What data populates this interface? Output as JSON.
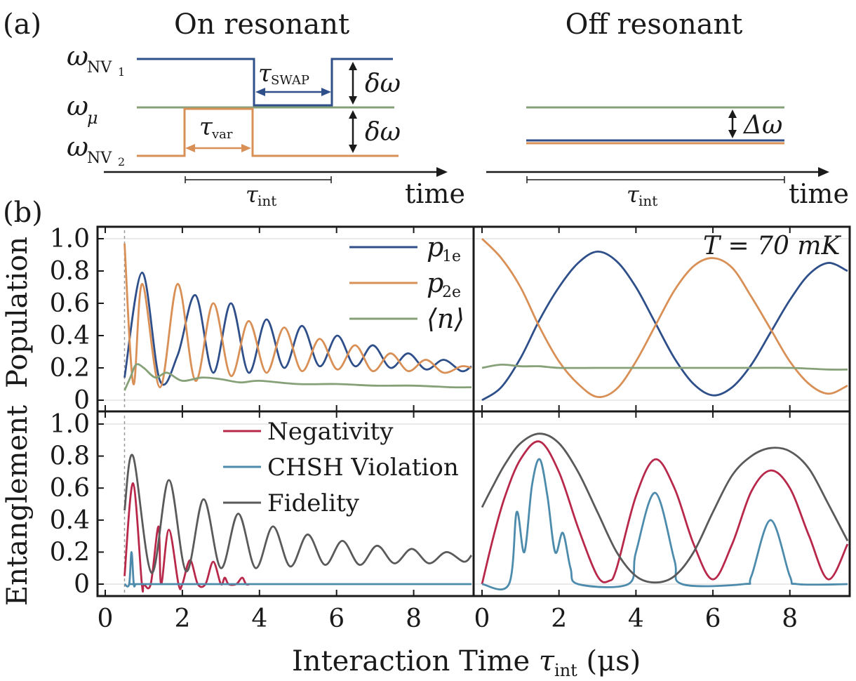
{
  "panel_a": {
    "label": "(a)",
    "on_title": "On resonant",
    "off_title": "Off resonant",
    "omega": "ω",
    "nv1_sub": "NV",
    "nv1_idx": "1",
    "mu_sub": "μ",
    "nv2_sub": "NV",
    "nv2_idx": "2",
    "tau": "τ",
    "swap_sub": "SWAP",
    "var_sub": "var",
    "int_sub": "int",
    "delta_omega": "δω",
    "Delta_omega": "Δω",
    "time_label": "time",
    "colors": {
      "nv1": "#2f4f8a",
      "mu": "#86a178",
      "nv2": "#d99057"
    }
  },
  "panel_b": {
    "label": "(b)",
    "temperature": "T = 70 mK",
    "xlabel_pre": "Interaction Time ",
    "xlabel_tau": "τ",
    "xlabel_sub": "int",
    "xlabel_unit": " (μs)",
    "ylabel_top": "Population",
    "ylabel_bottom": "Entanglement",
    "legend_top": [
      {
        "sym": "p",
        "sub": "1e",
        "color": "#2f4f8a"
      },
      {
        "sym": "p",
        "sub": "2e",
        "color": "#d99057"
      },
      {
        "sym": "⟨n⟩",
        "sub": "",
        "color": "#86a178"
      }
    ],
    "legend_bottom": [
      {
        "label": "Negativity",
        "color": "#b8284a"
      },
      {
        "label": "CHSH Violation",
        "color": "#4d8bad"
      },
      {
        "label": "Fidelity",
        "color": "#5a5a5a"
      }
    ]
  },
  "chart_data": [
    {
      "type": "line",
      "panel": "population-on-resonant",
      "ylabel": "Population",
      "xlim": [
        0,
        9.5
      ],
      "ylim": [
        0,
        1.0
      ],
      "x_ticks": [
        "0",
        "2",
        "4",
        "6",
        "8"
      ],
      "y_ticks": [
        "0",
        "0.2",
        "0.4",
        "0.6",
        "0.8",
        "1.0"
      ],
      "series": [
        {
          "name": "p1e",
          "color": "#2f4f8a",
          "x": [
            0.5,
            0.96,
            1.42,
            1.88,
            2.34,
            2.8,
            3.26,
            3.72,
            4.18,
            4.64,
            5.1,
            5.56,
            6.02,
            6.48,
            6.94,
            7.4,
            7.86,
            8.32,
            8.78,
            9.24,
            9.5
          ],
          "y": [
            0.14,
            0.79,
            0.12,
            0.28,
            0.65,
            0.17,
            0.6,
            0.17,
            0.5,
            0.2,
            0.46,
            0.21,
            0.4,
            0.21,
            0.34,
            0.2,
            0.29,
            0.19,
            0.25,
            0.18,
            0.21
          ]
        },
        {
          "name": "p2e",
          "color": "#d99057",
          "x": [
            0.5,
            0.73,
            0.96,
            1.42,
            1.88,
            2.34,
            2.8,
            3.26,
            3.72,
            4.18,
            4.64,
            5.1,
            5.56,
            6.02,
            6.48,
            6.94,
            7.4,
            7.86,
            8.32,
            8.78,
            9.24,
            9.5
          ],
          "y": [
            0.97,
            0.1,
            0.72,
            0.08,
            0.72,
            0.12,
            0.6,
            0.15,
            0.49,
            0.17,
            0.45,
            0.18,
            0.38,
            0.19,
            0.34,
            0.18,
            0.29,
            0.18,
            0.25,
            0.17,
            0.21,
            0.2
          ]
        },
        {
          "name": "⟨n⟩",
          "color": "#86a178",
          "x": [
            0.5,
            0.65,
            0.8,
            1.0,
            1.3,
            1.6,
            2.0,
            2.5,
            3.0,
            3.5,
            4.0,
            5.0,
            6.0,
            7.0,
            8.0,
            9.0,
            9.5
          ],
          "y": [
            0.06,
            0.14,
            0.22,
            0.2,
            0.14,
            0.17,
            0.12,
            0.14,
            0.13,
            0.11,
            0.12,
            0.1,
            0.1,
            0.09,
            0.09,
            0.08,
            0.08
          ]
        }
      ]
    },
    {
      "type": "line",
      "panel": "population-off-resonant",
      "xlim": [
        0,
        9.5
      ],
      "ylim": [
        0,
        1.0
      ],
      "x_ticks": [
        "0",
        "2",
        "4",
        "6",
        "8"
      ],
      "series": [
        {
          "name": "p1e",
          "color": "#2f4f8a",
          "x": [
            0,
            0.5,
            1.0,
            1.5,
            2.0,
            2.5,
            3.0,
            3.5,
            4.0,
            4.5,
            5.0,
            5.5,
            6.0,
            6.5,
            7.0,
            7.5,
            8.0,
            8.5,
            9.0,
            9.5
          ],
          "y": [
            0.0,
            0.08,
            0.26,
            0.5,
            0.7,
            0.85,
            0.92,
            0.86,
            0.7,
            0.48,
            0.26,
            0.1,
            0.03,
            0.08,
            0.22,
            0.42,
            0.62,
            0.78,
            0.85,
            0.8
          ]
        },
        {
          "name": "p2e",
          "color": "#d99057",
          "x": [
            0,
            0.5,
            1.0,
            1.5,
            2.0,
            2.5,
            3.0,
            3.5,
            4.0,
            4.5,
            5.0,
            5.5,
            6.0,
            6.5,
            7.0,
            7.5,
            8.0,
            8.5,
            9.0,
            9.5
          ],
          "y": [
            1.0,
            0.88,
            0.7,
            0.45,
            0.24,
            0.1,
            0.02,
            0.07,
            0.24,
            0.46,
            0.68,
            0.83,
            0.88,
            0.82,
            0.64,
            0.44,
            0.24,
            0.1,
            0.04,
            0.09
          ]
        },
        {
          "name": "⟨n⟩",
          "color": "#86a178",
          "x": [
            0,
            0.5,
            1.0,
            1.5,
            2.0,
            3.0,
            4.0,
            5.0,
            6.0,
            7.0,
            8.0,
            9.0,
            9.5
          ],
          "y": [
            0.2,
            0.22,
            0.21,
            0.21,
            0.2,
            0.2,
            0.2,
            0.2,
            0.2,
            0.2,
            0.2,
            0.19,
            0.19
          ]
        }
      ]
    },
    {
      "type": "line",
      "panel": "entanglement-on-resonant",
      "ylabel": "Entanglement",
      "xlim": [
        0,
        9.5
      ],
      "ylim": [
        0,
        1.0
      ],
      "x_ticks": [
        "0",
        "2",
        "4",
        "6",
        "8"
      ],
      "y_ticks": [
        "0",
        "0.2",
        "0.4",
        "0.6",
        "0.8",
        "1.0"
      ],
      "series": [
        {
          "name": "Negativity",
          "color": "#b8284a",
          "x": [
            0.5,
            0.72,
            0.95,
            1.0,
            1.18,
            1.38,
            1.45,
            1.65,
            1.9,
            2.0,
            2.2,
            2.4,
            2.6,
            2.8,
            3.0,
            3.1,
            3.2,
            3.4,
            3.55,
            3.65,
            3.75
          ],
          "y": [
            0.05,
            0.63,
            0.0,
            0.0,
            0.0,
            0.36,
            0.0,
            0.34,
            0.0,
            0.0,
            0.15,
            0.0,
            0.0,
            0.14,
            0.0,
            0.04,
            0.0,
            0.0,
            0.04,
            0.0,
            0.0
          ]
        },
        {
          "name": "CHSH Violation",
          "color": "#4d8bad",
          "x": [
            0.5,
            0.62,
            0.68,
            0.74,
            0.8,
            1.0,
            5.0,
            9.5
          ],
          "y": [
            0.0,
            0.0,
            0.2,
            0.0,
            0.0,
            0.0,
            0.0,
            0.0
          ]
        },
        {
          "name": "Fidelity",
          "color": "#5a5a5a",
          "x": [
            0.5,
            0.72,
            1.2,
            1.65,
            2.1,
            2.55,
            3.0,
            3.45,
            3.9,
            4.35,
            4.8,
            5.25,
            5.7,
            6.15,
            6.6,
            7.05,
            7.5,
            7.95,
            8.4,
            8.85,
            9.3,
            9.5
          ],
          "y": [
            0.46,
            0.8,
            0.07,
            0.65,
            0.08,
            0.53,
            0.1,
            0.44,
            0.1,
            0.36,
            0.11,
            0.31,
            0.12,
            0.27,
            0.12,
            0.24,
            0.13,
            0.22,
            0.13,
            0.2,
            0.14,
            0.18
          ]
        }
      ]
    },
    {
      "type": "line",
      "panel": "entanglement-off-resonant",
      "xlim": [
        0,
        9.5
      ],
      "ylim": [
        0,
        1.0
      ],
      "x_ticks": [
        "0",
        "2",
        "4",
        "6",
        "8"
      ],
      "series": [
        {
          "name": "Negativity",
          "color": "#b8284a",
          "x": [
            0,
            0.3,
            0.6,
            1.0,
            1.5,
            2.0,
            2.5,
            3.0,
            3.3,
            3.5,
            4.0,
            4.5,
            5.0,
            5.5,
            6.0,
            6.5,
            7.0,
            7.5,
            8.0,
            8.5,
            9.0,
            9.5
          ],
          "y": [
            0.0,
            0.3,
            0.55,
            0.78,
            0.89,
            0.7,
            0.35,
            0.05,
            0.02,
            0.1,
            0.55,
            0.78,
            0.6,
            0.25,
            0.03,
            0.25,
            0.58,
            0.71,
            0.6,
            0.3,
            0.03,
            0.25
          ]
        },
        {
          "name": "CHSH Violation",
          "color": "#4d8bad",
          "x": [
            0,
            0.7,
            0.9,
            1.1,
            1.3,
            1.5,
            1.7,
            1.9,
            2.1,
            2.3,
            2.5,
            3.8,
            4.0,
            4.5,
            5.0,
            5.2,
            6.8,
            7.0,
            7.5,
            8.0,
            8.2,
            9.5
          ],
          "y": [
            0.0,
            0.0,
            0.45,
            0.2,
            0.62,
            0.78,
            0.55,
            0.2,
            0.32,
            0.1,
            0.0,
            0.0,
            0.2,
            0.57,
            0.15,
            0.0,
            0.0,
            0.05,
            0.4,
            0.05,
            0.0,
            0.0
          ]
        },
        {
          "name": "Fidelity",
          "color": "#5a5a5a",
          "x": [
            0,
            0.3,
            0.6,
            1.0,
            1.5,
            2.0,
            2.5,
            3.0,
            3.5,
            4.0,
            4.5,
            5.0,
            5.5,
            6.0,
            6.5,
            7.0,
            7.5,
            8.0,
            8.5,
            9.0,
            9.5
          ],
          "y": [
            0.48,
            0.62,
            0.75,
            0.88,
            0.94,
            0.88,
            0.7,
            0.45,
            0.2,
            0.05,
            0.01,
            0.05,
            0.2,
            0.45,
            0.68,
            0.8,
            0.85,
            0.83,
            0.72,
            0.5,
            0.27
          ]
        }
      ]
    }
  ]
}
